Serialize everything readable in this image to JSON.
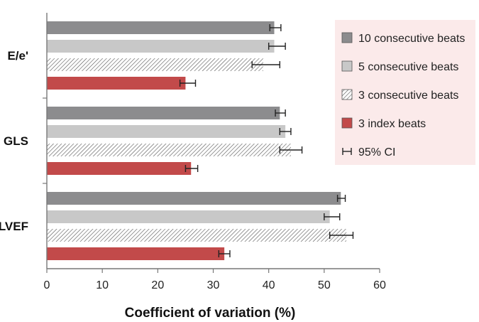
{
  "chart_data": {
    "type": "bar",
    "orientation": "horizontal",
    "categories": [
      "E/e'",
      "GLS",
      "LVEF"
    ],
    "series": [
      {
        "name": "10 consecutive beats",
        "values": [
          41,
          42,
          53
        ],
        "ci": [
          [
            40.2,
            42.2
          ],
          [
            41.2,
            43.0
          ],
          [
            52.4,
            53.8
          ]
        ],
        "color": "#8c8c8e",
        "pattern": "solid"
      },
      {
        "name": "5 consecutive beats",
        "values": [
          41,
          43,
          51
        ],
        "ci": [
          [
            40.0,
            43.0
          ],
          [
            42.0,
            44.0
          ],
          [
            50.0,
            52.8
          ]
        ],
        "color": "#c8c8c8",
        "pattern": "solid"
      },
      {
        "name": "3 consecutive beats",
        "values": [
          39,
          44,
          54
        ],
        "ci": [
          [
            37.0,
            42.0
          ],
          [
            42.0,
            46.0
          ],
          [
            51.0,
            55.2
          ]
        ],
        "color": "#ffffff",
        "pattern": "hatch"
      },
      {
        "name": "3 index beats",
        "values": [
          25,
          26,
          32
        ],
        "ci": [
          [
            24.0,
            26.8
          ],
          [
            25.0,
            27.2
          ],
          [
            31.0,
            33.0
          ]
        ],
        "color": "#c24a4a",
        "pattern": "solid"
      }
    ],
    "ci_legend": "95% CI",
    "xlabel": "Coefficient of variation (%)",
    "ylabel": "",
    "xlim": [
      0,
      60
    ],
    "xticks": [
      0,
      10,
      20,
      30,
      40,
      50,
      60
    ],
    "legend_position": "top-right",
    "legend_background": "#fbeaea",
    "grid": false
  }
}
